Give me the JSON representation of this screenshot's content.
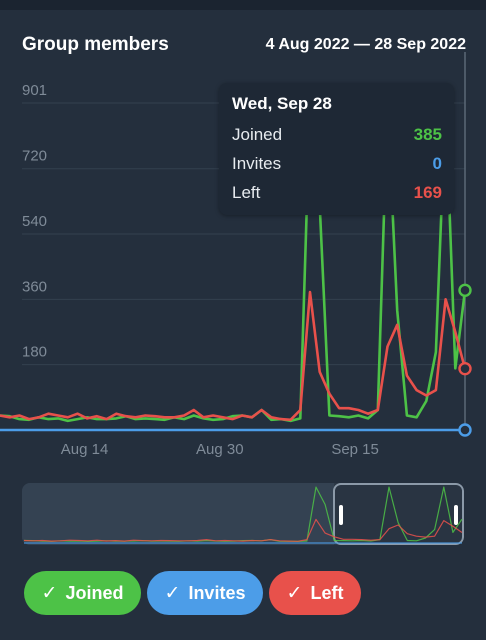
{
  "header": {
    "title": "Group members",
    "date_range": "4 Aug 2022 — 28 Sep 2022"
  },
  "tooltip": {
    "date": "Wed, Sep 28",
    "rows": [
      {
        "label": "Joined",
        "value": "385",
        "color": "#4dc247"
      },
      {
        "label": "Invites",
        "value": "0",
        "color": "#4c9de8"
      },
      {
        "label": "Left",
        "value": "169",
        "color": "#e8514b"
      }
    ]
  },
  "chips": [
    {
      "label": "Joined",
      "color": "#4dc247",
      "icon": "check-icon"
    },
    {
      "label": "Invites",
      "color": "#4c9de8",
      "icon": "check-icon"
    },
    {
      "label": "Left",
      "color": "#e8514b",
      "icon": "check-icon"
    }
  ],
  "colors": {
    "joined": "#4dc247",
    "invites": "#4c9de8",
    "left": "#e8514b"
  },
  "chart_data": {
    "type": "line",
    "title": "Group members",
    "subtitle": "4 Aug 2022 — 28 Sep 2022",
    "x_ticks": [
      "Aug 14",
      "Aug 30",
      "Sep 15"
    ],
    "y_ticks": [
      "180",
      "360",
      "540",
      "720",
      "901"
    ],
    "ylim": [
      0,
      901
    ],
    "x_start": "2022-08-04",
    "x_end": "2022-09-28",
    "legend": "bottom",
    "grid": true,
    "series": [
      {
        "name": "Joined",
        "color": "#4dc247",
        "values": [
          40,
          38,
          30,
          28,
          35,
          30,
          32,
          25,
          30,
          35,
          30,
          30,
          32,
          38,
          30,
          32,
          30,
          28,
          35,
          30,
          40,
          32,
          28,
          30,
          38,
          40,
          35,
          55,
          28,
          30,
          25,
          32,
          900,
          620,
          40,
          38,
          35,
          40,
          32,
          55,
          900,
          330,
          40,
          35,
          80,
          215,
          900,
          170,
          385
        ]
      },
      {
        "name": "Invites",
        "color": "#4c9de8",
        "values": [
          0,
          0,
          0,
          0,
          0,
          0,
          0,
          0,
          0,
          0,
          0,
          0,
          0,
          0,
          0,
          0,
          0,
          0,
          0,
          0,
          0,
          0,
          0,
          0,
          0,
          0,
          0,
          0,
          0,
          0,
          0,
          0,
          0,
          0,
          0,
          0,
          0,
          0,
          0,
          0,
          0,
          0,
          0,
          0,
          0,
          0,
          0,
          0,
          0
        ]
      },
      {
        "name": "Left",
        "color": "#e8514b",
        "values": [
          40,
          35,
          40,
          30,
          35,
          45,
          40,
          35,
          45,
          32,
          38,
          30,
          45,
          38,
          35,
          40,
          38,
          35,
          35,
          40,
          55,
          35,
          40,
          35,
          30,
          40,
          35,
          55,
          35,
          30,
          28,
          55,
          380,
          160,
          100,
          60,
          60,
          55,
          45,
          55,
          230,
          290,
          150,
          110,
          95,
          110,
          360,
          270,
          169
        ]
      }
    ]
  }
}
